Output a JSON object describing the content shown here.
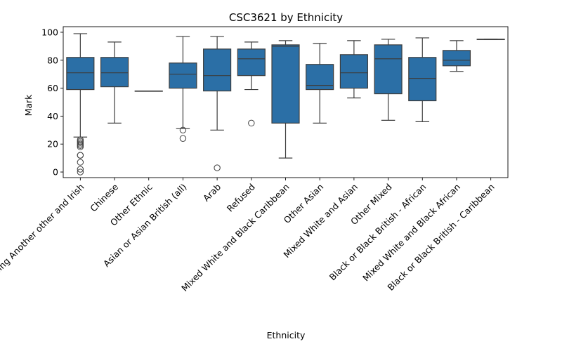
{
  "chart_data": {
    "type": "box",
    "title": "CSC3621 by Ethnicity",
    "xlabel": "Ethnicity",
    "ylabel": "Mark",
    "ylim": [
      -4,
      104
    ],
    "yticks": [
      0,
      20,
      40,
      60,
      80,
      100
    ],
    "box_color": "#2b6fa6",
    "grid": false,
    "categories": [
      "White including Another other and Irish",
      "Chinese",
      "Other Ethnic",
      "Asian or Asian British (all)",
      "Arab",
      "Refused",
      "Mixed White and Black Caribbean",
      "Other Asian",
      "Mixed White and Asian",
      "Other Mixed",
      "Black or Black British - African",
      "Mixed White and Black African",
      "Black or Black British - Caribbean"
    ],
    "boxes": [
      {
        "min": 25,
        "q1": 59,
        "median": 71,
        "q3": 82,
        "max": 99,
        "outliers": [
          23,
          22,
          21,
          20,
          19,
          18,
          12,
          12,
          7,
          2,
          0
        ]
      },
      {
        "min": 35,
        "q1": 61,
        "median": 71,
        "q3": 82,
        "max": 93,
        "outliers": []
      },
      {
        "min": 58,
        "q1": 58,
        "median": 58,
        "q3": 58,
        "max": 58,
        "outliers": []
      },
      {
        "min": 31,
        "q1": 60,
        "median": 70,
        "q3": 78,
        "max": 97,
        "outliers": [
          30,
          24
        ]
      },
      {
        "min": 30,
        "q1": 58,
        "median": 69,
        "q3": 88,
        "max": 97,
        "outliers": [
          3
        ]
      },
      {
        "min": 59,
        "q1": 69,
        "median": 81,
        "q3": 88,
        "max": 93,
        "outliers": [
          35
        ]
      },
      {
        "min": 10,
        "q1": 35,
        "median": 90,
        "q3": 91,
        "max": 94,
        "outliers": []
      },
      {
        "min": 35,
        "q1": 59,
        "median": 62,
        "q3": 77,
        "max": 92,
        "outliers": []
      },
      {
        "min": 53,
        "q1": 60,
        "median": 71,
        "q3": 84,
        "max": 94,
        "outliers": []
      },
      {
        "min": 37,
        "q1": 56,
        "median": 81,
        "q3": 91,
        "max": 95,
        "outliers": []
      },
      {
        "min": 36,
        "q1": 51,
        "median": 67,
        "q3": 82,
        "max": 96,
        "outliers": []
      },
      {
        "min": 72,
        "q1": 76,
        "median": 80,
        "q3": 87,
        "max": 94,
        "outliers": []
      },
      {
        "min": 95,
        "q1": 95,
        "median": 95,
        "q3": 95,
        "max": 95,
        "outliers": []
      }
    ]
  }
}
